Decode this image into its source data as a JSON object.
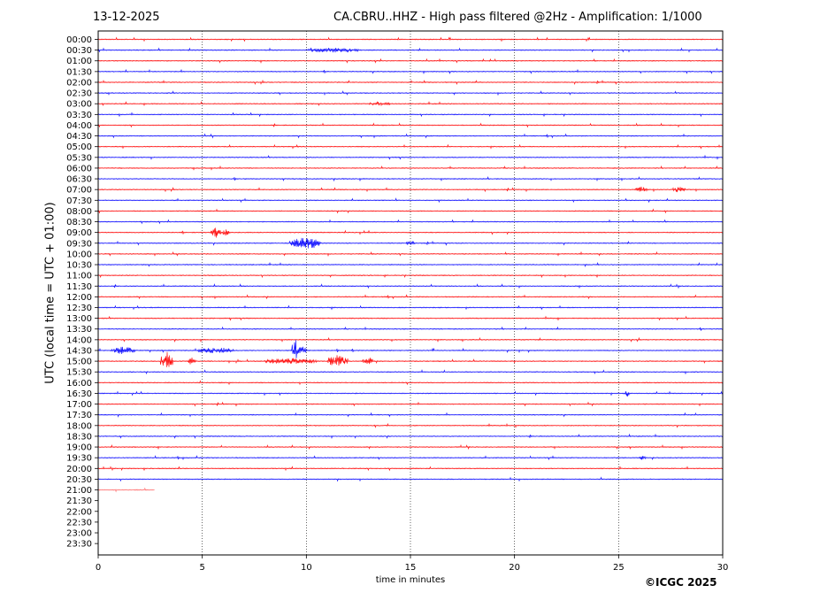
{
  "header": {
    "date": "13-12-2025",
    "title": "CA.CBRU..HHZ - High pass filtered @2Hz - Amplification: 1/1000"
  },
  "footer": {
    "credit": "©ICGC 2025"
  },
  "chart_data": {
    "type": "line",
    "title": "CA.CBRU..HHZ - High pass filtered @2Hz - Amplification: 1/1000",
    "xlabel": "time in minutes",
    "ylabel": "UTC (local time = UTC + 01:00)",
    "xlim": [
      0,
      30
    ],
    "xticks": [
      "0",
      "5",
      "10",
      "15",
      "20",
      "25",
      "30"
    ],
    "vertical_gridlines_at": [
      5,
      10,
      15,
      20,
      25
    ],
    "rows": [
      "00:00",
      "00:30",
      "01:00",
      "01:30",
      "02:00",
      "02:30",
      "03:00",
      "03:30",
      "04:00",
      "04:30",
      "05:00",
      "05:30",
      "06:00",
      "06:30",
      "07:00",
      "07:30",
      "08:00",
      "08:30",
      "09:00",
      "09:30",
      "10:00",
      "10:30",
      "11:00",
      "11:30",
      "12:00",
      "12:30",
      "13:00",
      "13:30",
      "14:00",
      "14:30",
      "15:00",
      "15:30",
      "16:00",
      "16:30",
      "17:00",
      "17:30",
      "18:00",
      "18:30",
      "19:00",
      "19:30",
      "20:00",
      "20:30",
      "21:00",
      "21:30",
      "22:00",
      "22:30",
      "23:00",
      "23:30"
    ],
    "row_colors": [
      "#ff0000",
      "#0000ff"
    ],
    "last_recorded_row": "21:00",
    "last_recorded_until_minute": 2.7,
    "events": [
      {
        "row": "00:30",
        "from": 10.0,
        "to": 12.5,
        "amp": 0.2
      },
      {
        "row": "03:00",
        "from": 13.0,
        "to": 14.0,
        "amp": 0.15
      },
      {
        "row": "07:00",
        "from": 25.8,
        "to": 26.4,
        "amp": 0.25
      },
      {
        "row": "07:00",
        "from": 27.6,
        "to": 28.2,
        "amp": 0.25
      },
      {
        "row": "09:00",
        "from": 5.4,
        "to": 5.9,
        "amp": 0.5
      },
      {
        "row": "09:00",
        "from": 6.0,
        "to": 6.3,
        "amp": 0.45
      },
      {
        "row": "09:30",
        "from": 9.2,
        "to": 10.7,
        "amp": 0.55
      },
      {
        "row": "09:30",
        "from": 14.8,
        "to": 15.2,
        "amp": 0.25
      },
      {
        "row": "14:30",
        "from": 0.6,
        "to": 1.8,
        "amp": 0.35
      },
      {
        "row": "14:30",
        "from": 4.8,
        "to": 6.5,
        "amp": 0.3
      },
      {
        "row": "14:30",
        "from": 9.3,
        "to": 9.6,
        "amp": 1.2
      },
      {
        "row": "14:30",
        "from": 9.6,
        "to": 10.0,
        "amp": 0.5
      },
      {
        "row": "15:00",
        "from": 3.0,
        "to": 3.6,
        "amp": 0.9
      },
      {
        "row": "15:00",
        "from": 4.3,
        "to": 4.7,
        "amp": 0.35
      },
      {
        "row": "15:00",
        "from": 8.0,
        "to": 10.5,
        "amp": 0.3
      },
      {
        "row": "15:00",
        "from": 11.0,
        "to": 12.0,
        "amp": 0.6
      },
      {
        "row": "15:00",
        "from": 12.7,
        "to": 13.2,
        "amp": 0.4
      },
      {
        "row": "16:30",
        "from": 25.3,
        "to": 25.5,
        "amp": 0.35
      },
      {
        "row": "19:30",
        "from": 26.0,
        "to": 26.3,
        "amp": 0.2
      }
    ]
  }
}
